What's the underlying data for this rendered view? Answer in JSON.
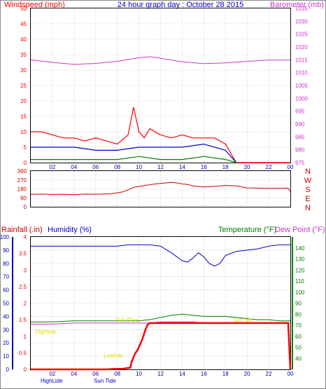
{
  "header": {
    "left_label": "Windspeed (mph)",
    "center_title": "24 hour graph day : October 28 2015",
    "right_label": "Barometer (mb)"
  },
  "middle_header": {
    "rainfall_label": "Rainfall (.in)",
    "humidity_label": "Humidity (%)",
    "temperature_label": "Temperature (°F)",
    "dewpoint_label": "Dew Point (°F)"
  },
  "compass_labels": [
    "N",
    "W",
    "S",
    "E",
    "N"
  ],
  "tides": [
    {
      "label": "Hightide",
      "hour": 0.3,
      "level": 0.27
    },
    {
      "label": "Lowtide",
      "hour": 6.6,
      "level": 0.09
    },
    {
      "label": "Sun Rise",
      "hour": 7.7,
      "level": 0.36
    },
    {
      "label": "Sun Set",
      "hour": 18.6,
      "level": 0.36
    }
  ],
  "bottom_overlap_labels": [
    "HighLide",
    "Sun Tide"
  ],
  "colors": {
    "windspeed": "#ff0000",
    "gust": "#ff0000",
    "avg_wind": "#0000cc",
    "low_wind": "#008000",
    "barometer": "#cc33cc",
    "direction": "#cc0000",
    "humidity": "#0000cc",
    "temperature": "#008000",
    "dewpoint": "#cc33cc",
    "rainfall": "#ff0000",
    "tide_text": "#dddd00",
    "grid": "#aaaaaa",
    "axis_left": "#ff0000",
    "axis_right": "#cc33cc",
    "hum_axis": "#0000aa",
    "temp_axis": "#008000"
  },
  "chart_data": [
    {
      "type": "line",
      "x_ticks": [
        "02",
        "04",
        "06",
        "08",
        "10",
        "12",
        "14",
        "16",
        "18",
        "20",
        "22",
        "00"
      ],
      "xlim": [
        0,
        24
      ],
      "grid": true,
      "series": [
        {
          "name": "Windspeed (mph)",
          "axis": "left",
          "x": [
            0,
            1,
            2,
            3,
            4,
            5,
            6,
            7,
            8,
            9,
            9.5,
            10,
            10.5,
            11,
            12,
            13,
            14,
            15,
            16,
            17,
            18,
            19,
            20,
            21,
            22,
            23,
            24
          ],
          "values": [
            10,
            10,
            9,
            8,
            8,
            7,
            8,
            7,
            6,
            9,
            18,
            10,
            8,
            11,
            9,
            8,
            9,
            8,
            8,
            8,
            6,
            0,
            0,
            0,
            0,
            0,
            0
          ]
        },
        {
          "axis": "left",
          "x": [
            0,
            2,
            4,
            6,
            8,
            10,
            12,
            14,
            16,
            18,
            19
          ],
          "values": [
            5,
            5,
            5,
            4,
            4,
            5,
            5,
            5,
            6,
            4,
            0
          ]
        },
        {
          "axis": "left",
          "x": [
            0,
            2,
            4,
            6,
            8,
            10,
            12,
            14,
            16,
            18,
            19
          ],
          "values": [
            1,
            1,
            1,
            1,
            1,
            2,
            1,
            1,
            2,
            1,
            0
          ]
        },
        {
          "name": "Barometer (mb)",
          "axis": "right",
          "x": [
            0,
            2,
            4,
            6,
            8,
            10,
            11,
            12,
            14,
            16,
            18,
            20,
            22,
            24
          ],
          "values": [
            1015.0,
            1014.0,
            1013.2,
            1013.6,
            1014.4,
            1015.8,
            1016.2,
            1015.6,
            1014.2,
            1013.5,
            1013.8,
            1014.4,
            1014.9,
            1014.9
          ]
        }
      ],
      "ylim_left": [
        0,
        50
      ],
      "yticks_left": [
        0,
        5,
        10,
        15,
        20,
        25,
        30,
        35,
        40,
        45,
        50
      ],
      "ylim_right": [
        975,
        1035
      ],
      "yticks_right": [
        975,
        980,
        985,
        990,
        995,
        1000,
        1005,
        1010,
        1015,
        1020,
        1025,
        1030,
        1035
      ]
    },
    {
      "type": "line",
      "x_ticks": [
        "02",
        "04",
        "06",
        "08",
        "10",
        "12",
        "14",
        "16",
        "18",
        "20",
        "22",
        "00"
      ],
      "xlim": [
        0,
        24
      ],
      "grid": true,
      "ylim": [
        0,
        360
      ],
      "yticks": [
        0,
        90,
        180,
        270,
        360
      ],
      "series": [
        {
          "axis": "left",
          "x": [
            0,
            1,
            2,
            3,
            4,
            5,
            6,
            7,
            7.5,
            8,
            8.5,
            9,
            9.5,
            10,
            10.5,
            11,
            11.5,
            12,
            12.5,
            13,
            13.5,
            14,
            14.5,
            15,
            16,
            17,
            18,
            19,
            20,
            21,
            22,
            23,
            23.8,
            24
          ],
          "values": [
            125,
            128,
            124,
            126,
            122,
            128,
            126,
            130,
            132,
            140,
            150,
            170,
            195,
            205,
            215,
            220,
            230,
            235,
            240,
            245,
            240,
            230,
            225,
            210,
            200,
            205,
            215,
            210,
            190,
            188,
            185,
            185,
            188,
            155
          ]
        }
      ]
    },
    {
      "type": "line",
      "x_ticks": [
        "02",
        "04",
        "06",
        "08",
        "10",
        "12",
        "14",
        "16",
        "18",
        "20",
        "22",
        "00"
      ],
      "xlim": [
        0,
        24
      ],
      "grid": true,
      "ylim_rain": [
        0,
        4
      ],
      "yticks_rain": [
        0,
        0.5,
        1,
        1.5,
        2,
        2.5,
        3,
        3.5,
        4
      ],
      "ylim_humidity": [
        0,
        100
      ],
      "yticks_humidity": [
        0,
        10,
        20,
        30,
        40,
        50,
        60,
        70,
        80,
        90,
        100
      ],
      "ylim_temp": [
        30,
        150
      ],
      "yticks_temp": [
        40,
        50,
        60,
        70,
        80,
        90,
        100,
        110,
        120,
        130,
        140
      ],
      "series": [
        {
          "name": "Humidity (%)",
          "axis": "humidity",
          "x": [
            0,
            2,
            4,
            6,
            8,
            9,
            10,
            11,
            12,
            13,
            14,
            14.5,
            15,
            15.5,
            16,
            16.5,
            17,
            17.5,
            18,
            19,
            20,
            21,
            22,
            23,
            24
          ],
          "values": [
            93,
            93,
            93,
            93,
            93,
            94,
            94,
            94,
            93,
            88,
            82,
            81,
            84,
            88,
            85,
            80,
            78,
            80,
            86,
            89,
            90,
            91,
            93,
            94,
            94
          ]
        },
        {
          "name": "Temperature (°F)",
          "axis": "temp",
          "x": [
            0,
            2,
            4,
            6,
            8,
            10,
            11,
            12,
            13,
            14,
            15,
            16,
            17,
            18,
            19,
            20,
            21,
            22,
            23,
            24
          ],
          "values": [
            73,
            73,
            74,
            74,
            74,
            74,
            75,
            77,
            79,
            80,
            79,
            78,
            78,
            78,
            77,
            76,
            75,
            75,
            74,
            74
          ]
        },
        {
          "name": "Dew Point (°F)",
          "axis": "temp",
          "x": [
            0,
            2,
            4,
            6,
            8,
            10,
            11,
            12,
            13,
            14,
            15,
            16,
            17,
            18,
            19,
            20,
            21,
            22,
            23,
            24
          ],
          "values": [
            71,
            71,
            72,
            72,
            72,
            72,
            72,
            73,
            73,
            73,
            73,
            72,
            72,
            72,
            72,
            72,
            72,
            72,
            72,
            72
          ]
        },
        {
          "name": "Rainfall (.in)",
          "axis": "rain",
          "x": [
            0,
            7,
            7.5,
            8.5,
            9.2,
            9.3,
            9.6,
            9.9,
            10.3,
            10.6,
            10.8,
            11,
            23.8,
            24
          ],
          "values": [
            0,
            0,
            0.01,
            0.02,
            0.05,
            0.2,
            0.45,
            0.6,
            0.9,
            1.2,
            1.35,
            1.4,
            1.4,
            0
          ]
        }
      ]
    }
  ]
}
